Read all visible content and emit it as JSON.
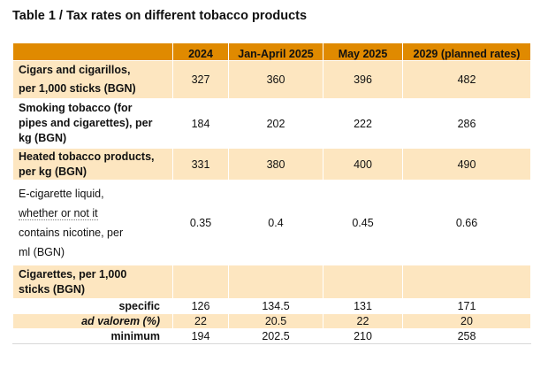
{
  "title": "Table 1 / Tax rates on different tobacco products",
  "headers": [
    "",
    "2024",
    "Jan-April 2025",
    "May 2025",
    "2029 (planned rates)"
  ],
  "rows": [
    {
      "label_lines": [
        "Cigars and cigarillos,",
        "per 1,000 sticks (BGN)"
      ],
      "values": [
        "327",
        "360",
        "396",
        "482"
      ]
    },
    {
      "label_lines": [
        "Smoking tobacco (for",
        "pipes and cigarettes), per",
        "kg (BGN)"
      ],
      "values": [
        "184",
        "202",
        "222",
        "286"
      ]
    },
    {
      "label_lines": [
        "Heated tobacco products,",
        "per kg (BGN)"
      ],
      "values": [
        "331",
        "380",
        "400",
        "490"
      ]
    },
    {
      "label_lines": [
        "E-cigarette liquid,",
        "whether or not it",
        "contains nicotine, per",
        "ml (BGN)"
      ],
      "values": [
        "0.35",
        "0.4",
        "0.45",
        "0.66"
      ]
    },
    {
      "label_lines": [
        "Cigarettes, per 1,000",
        "sticks (BGN)"
      ],
      "values": [
        "",
        "",
        "",
        ""
      ]
    }
  ],
  "cigarette_subrows": [
    {
      "label": "specific",
      "values": [
        "126",
        "134.5",
        "131",
        "171"
      ]
    },
    {
      "label": "ad valorem (%)",
      "values": [
        "22",
        "20.5",
        "22",
        "20"
      ]
    },
    {
      "label": "minimum",
      "values": [
        "194",
        "202.5",
        "210",
        "258"
      ]
    }
  ]
}
